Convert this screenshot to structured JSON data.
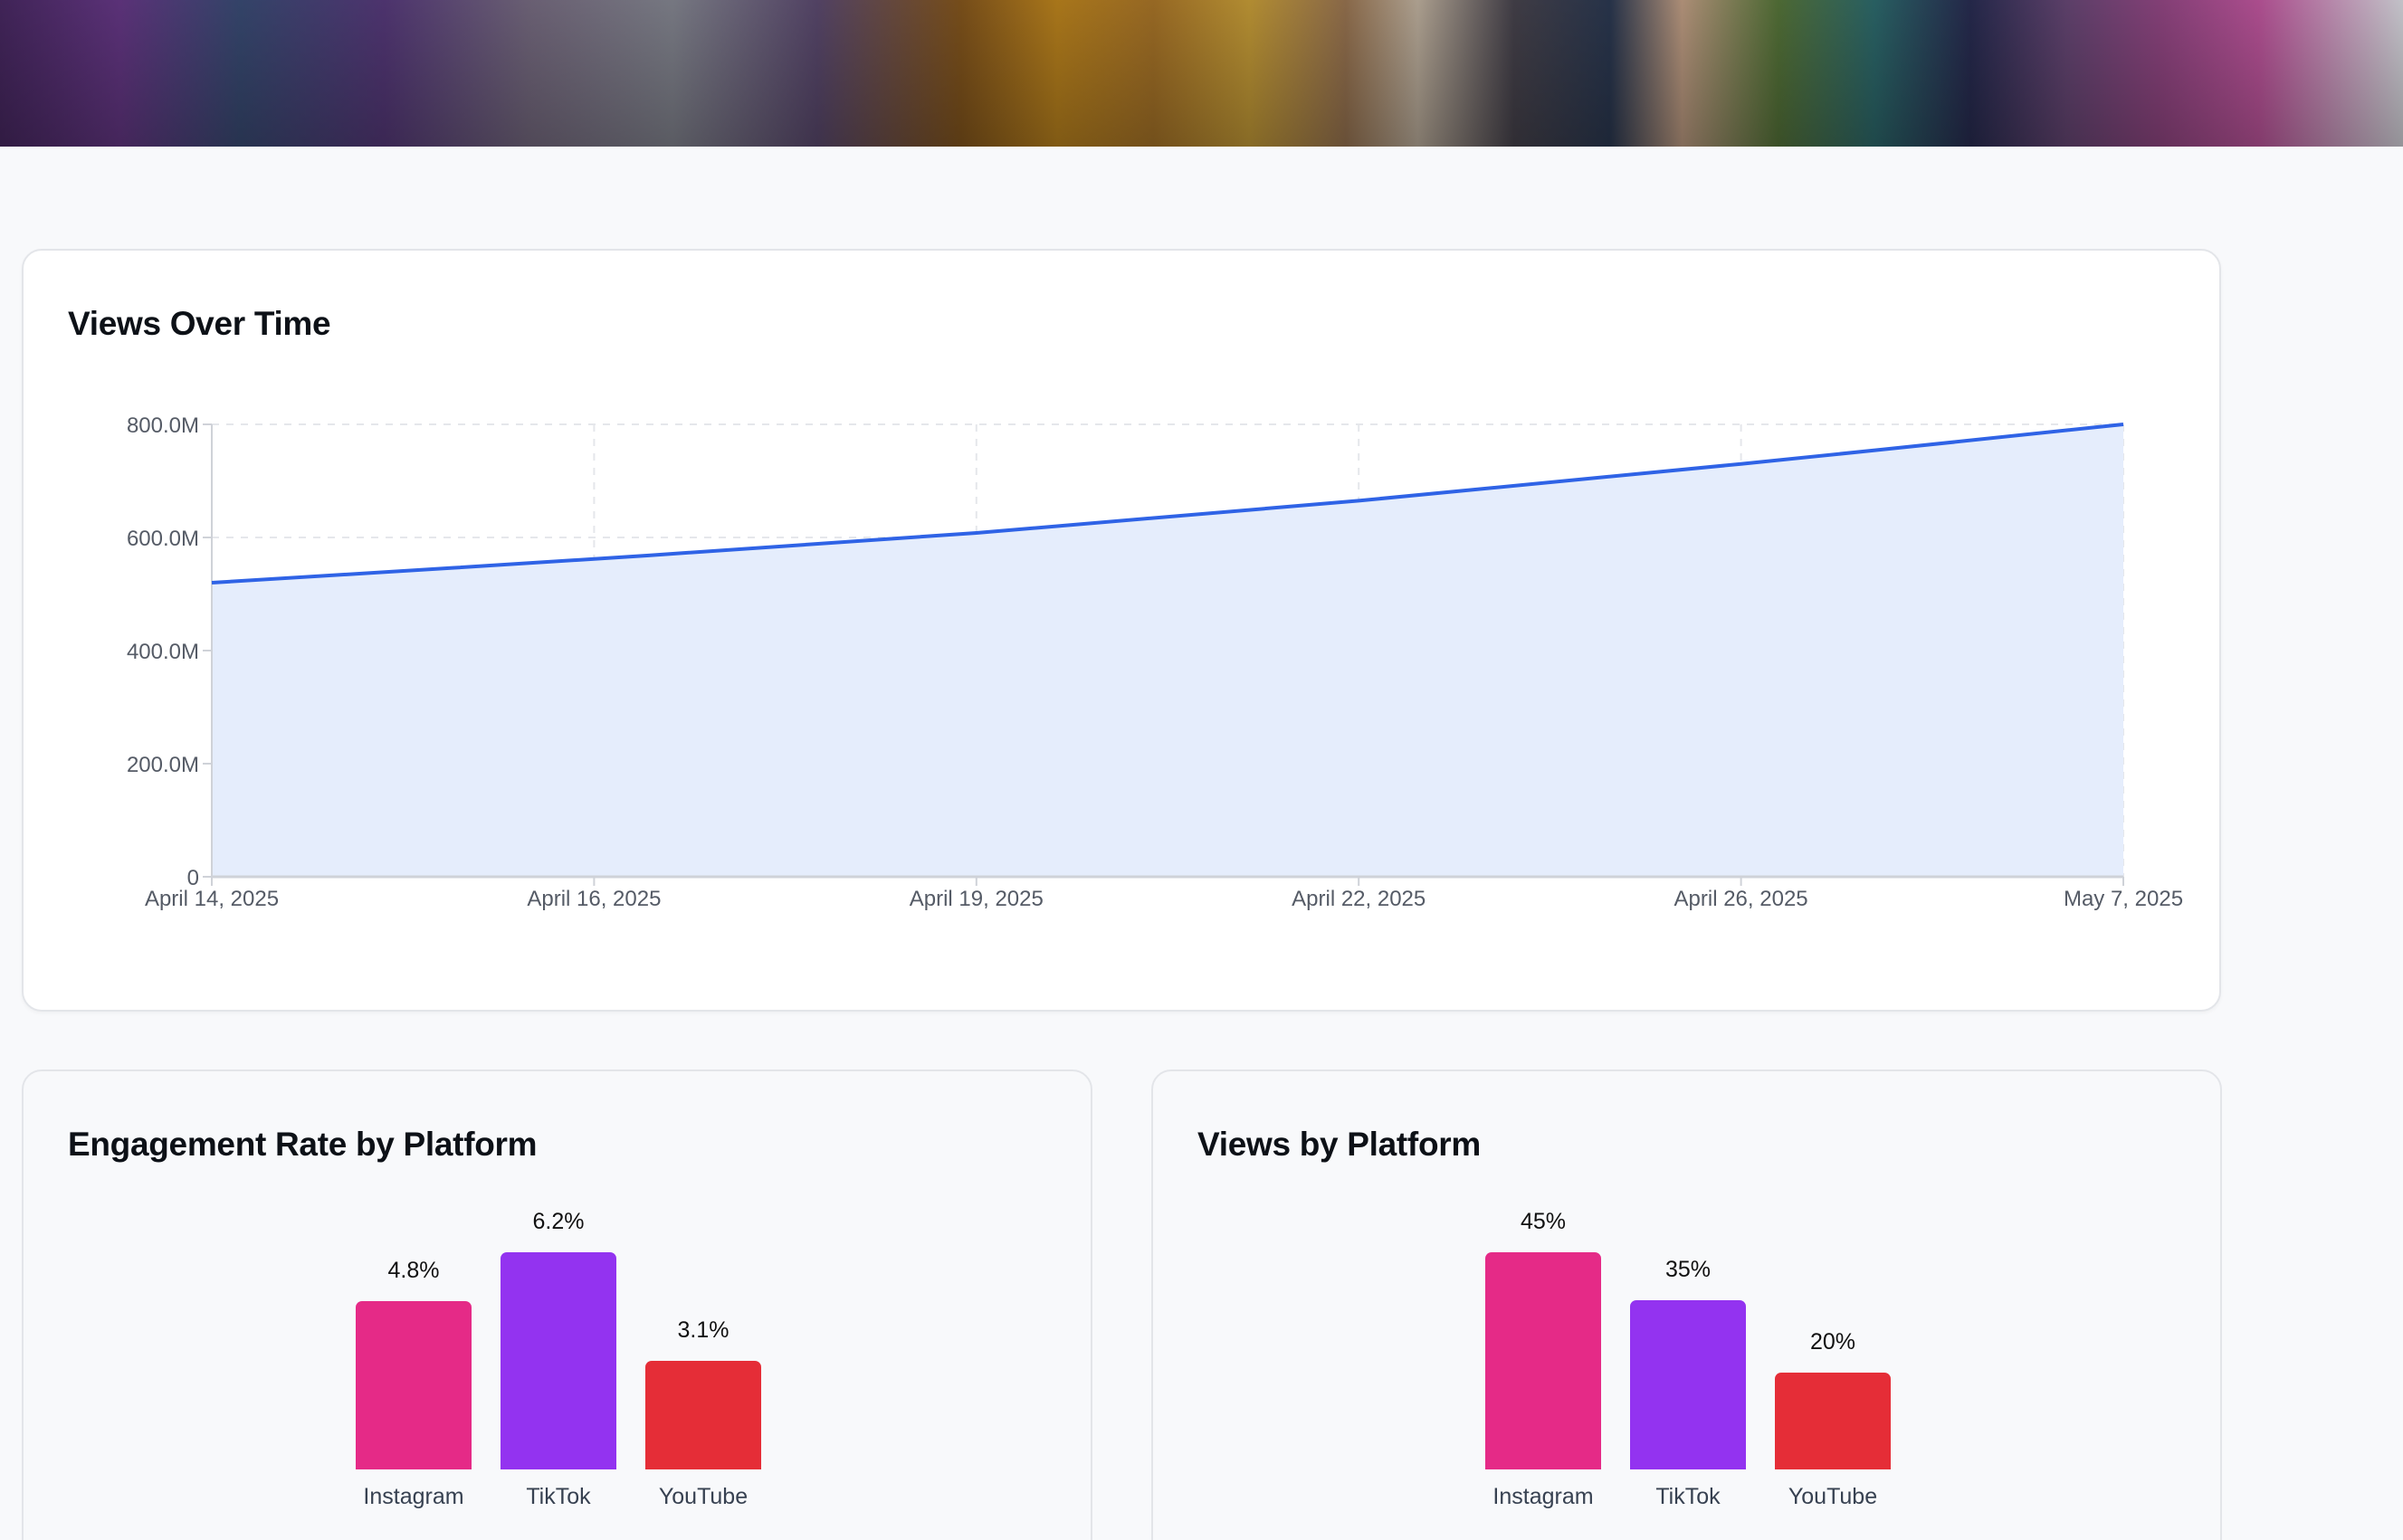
{
  "banner": {
    "alt": "game-artwork-banner"
  },
  "views_over_time": {
    "title": "Views Over Time",
    "line_color": "#2f63e6",
    "fill_color": "#e5edfc"
  },
  "engagement_by_platform": {
    "title": "Engagement Rate by Platform",
    "bars": [
      {
        "label": "Instagram",
        "value": 4.8,
        "display": "4.8%",
        "color": "#e52a87"
      },
      {
        "label": "TikTok",
        "value": 6.2,
        "display": "6.2%",
        "color": "#9333f0"
      },
      {
        "label": "YouTube",
        "value": 3.1,
        "display": "3.1%",
        "color": "#e52d37"
      }
    ]
  },
  "views_by_platform": {
    "title": "Views by Platform",
    "bars": [
      {
        "label": "Instagram",
        "value": 45,
        "display": "45%",
        "color": "#e52a87"
      },
      {
        "label": "TikTok",
        "value": 35,
        "display": "35%",
        "color": "#9333f0"
      },
      {
        "label": "YouTube",
        "value": 20,
        "display": "20%",
        "color": "#e52d37"
      }
    ]
  },
  "chart_data": [
    {
      "type": "area",
      "title": "Views Over Time",
      "xlabel": "",
      "ylabel": "",
      "x": [
        "April 14, 2025",
        "April 16, 2025",
        "April 19, 2025",
        "April 22, 2025",
        "April 26, 2025",
        "May 7, 2025"
      ],
      "values": [
        520000000,
        562000000,
        608000000,
        665000000,
        730000000,
        800000000
      ],
      "y_ticks": [
        "0",
        "200.0M",
        "400.0M",
        "600.0M",
        "800.0M"
      ],
      "ylim": [
        0,
        800000000
      ],
      "grid": true,
      "legend": "none",
      "color": "#2f63e6"
    },
    {
      "type": "bar",
      "title": "Engagement Rate by Platform",
      "categories": [
        "Instagram",
        "TikTok",
        "YouTube"
      ],
      "values": [
        4.8,
        6.2,
        3.1
      ],
      "data_labels": [
        "4.8%",
        "6.2%",
        "3.1%"
      ],
      "unit": "%",
      "grid": false,
      "legend": "none"
    },
    {
      "type": "bar",
      "title": "Views by Platform",
      "categories": [
        "Instagram",
        "TikTok",
        "YouTube"
      ],
      "values": [
        45,
        35,
        20
      ],
      "data_labels": [
        "45%",
        "35%",
        "20%"
      ],
      "unit": "%",
      "grid": false,
      "legend": "none"
    }
  ]
}
